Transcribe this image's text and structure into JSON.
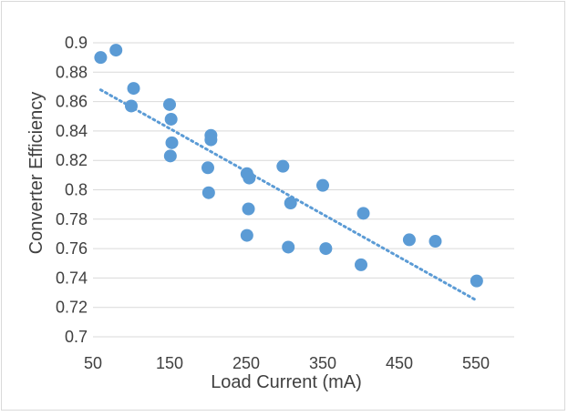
{
  "chart_data": {
    "type": "scatter",
    "title": "",
    "xlabel": "Load Current (mA)",
    "ylabel": "Converter Efficiency",
    "xlim": [
      50,
      600
    ],
    "ylim": [
      0.7,
      0.9
    ],
    "xticks": [
      "50",
      "150",
      "250",
      "350",
      "450",
      "550"
    ],
    "yticks": [
      "0.7",
      "0.72",
      "0.74",
      "0.76",
      "0.78",
      "0.8",
      "0.82",
      "0.84",
      "0.86",
      "0.88",
      "0.9"
    ],
    "grid": "horizontal",
    "legend": "none",
    "colors": {
      "points": "#5b9bd5",
      "trendline": "#5b9bd5",
      "grid": "#d9d9d9",
      "text": "#404040"
    },
    "series": [
      {
        "points": [
          [
            60,
            0.89
          ],
          [
            80,
            0.895
          ],
          [
            100,
            0.857
          ],
          [
            103,
            0.869
          ],
          [
            150,
            0.858
          ],
          [
            152,
            0.848
          ],
          [
            153,
            0.832
          ],
          [
            151,
            0.823
          ],
          [
            200,
            0.815
          ],
          [
            201,
            0.798
          ],
          [
            204,
            0.837
          ],
          [
            204,
            0.834
          ],
          [
            251,
            0.811
          ],
          [
            254,
            0.808
          ],
          [
            253,
            0.787
          ],
          [
            251,
            0.769
          ],
          [
            298,
            0.816
          ],
          [
            305,
            0.761
          ],
          [
            308,
            0.791
          ],
          [
            350,
            0.803
          ],
          [
            354,
            0.76
          ],
          [
            400,
            0.749
          ],
          [
            403,
            0.784
          ],
          [
            463,
            0.766
          ],
          [
            497,
            0.765
          ],
          [
            551,
            0.738
          ]
        ]
      }
    ],
    "trendline": {
      "type": "linear",
      "x": [
        60,
        550
      ],
      "y": [
        0.868,
        0.725
      ]
    }
  }
}
